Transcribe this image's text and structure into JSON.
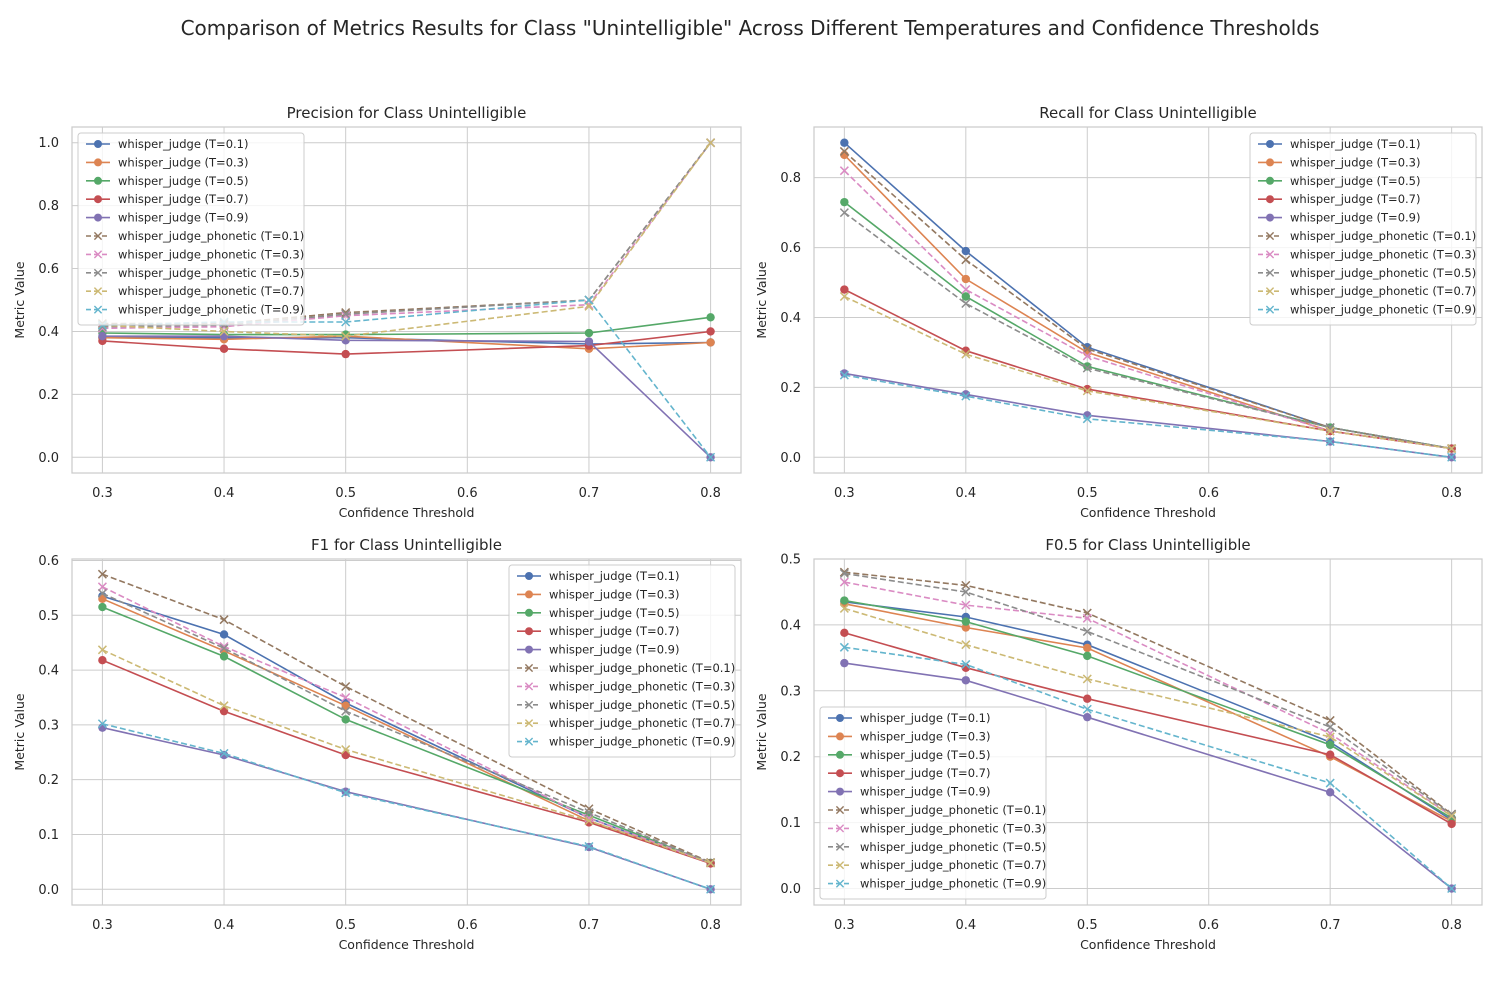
{
  "suptitle": "Comparison of Metrics Results for Class \"Unintelligible\" Across Different Temperatures and Confidence Thresholds",
  "colors": {
    "whisper_judge (T=0.1)": "#4c72b0",
    "whisper_judge (T=0.3)": "#dd8452",
    "whisper_judge (T=0.5)": "#55a868",
    "whisper_judge (T=0.7)": "#c44e52",
    "whisper_judge (T=0.9)": "#8172b3",
    "whisper_judge_phonetic (T=0.1)": "#937860",
    "whisper_judge_phonetic (T=0.3)": "#da8bc3",
    "whisper_judge_phonetic (T=0.5)": "#8c8c8c",
    "whisper_judge_phonetic (T=0.7)": "#ccb974",
    "whisper_judge_phonetic (T=0.9)": "#64b5cd"
  },
  "chart_data": [
    {
      "type": "line",
      "title": "Precision for Class Unintelligible",
      "xlabel": "Confidence Threshold",
      "ylabel": "Metric Value",
      "x": [
        0.3,
        0.4,
        0.5,
        0.7,
        0.8
      ],
      "xticks": [
        "0.3",
        "0.4",
        "0.5",
        "0.6",
        "0.7",
        "0.8"
      ],
      "yticks": [
        "0.0",
        "0.2",
        "0.4",
        "0.6",
        "0.8",
        "1.0"
      ],
      "ylim": [
        -0.05,
        1.05
      ],
      "legend_position": "upper left",
      "grid": true,
      "series": [
        {
          "name": "whisper_judge (T=0.1)",
          "marker": "o",
          "dashed": false,
          "values": [
            0.38,
            0.38,
            0.38,
            0.36,
            0.365
          ]
        },
        {
          "name": "whisper_judge (T=0.3)",
          "marker": "o",
          "dashed": false,
          "values": [
            0.38,
            0.375,
            0.385,
            0.345,
            0.365
          ]
        },
        {
          "name": "whisper_judge (T=0.5)",
          "marker": "o",
          "dashed": false,
          "values": [
            0.395,
            0.39,
            0.39,
            0.395,
            0.445
          ]
        },
        {
          "name": "whisper_judge (T=0.7)",
          "marker": "o",
          "dashed": false,
          "values": [
            0.37,
            0.345,
            0.328,
            0.355,
            0.4
          ]
        },
        {
          "name": "whisper_judge (T=0.9)",
          "marker": "o",
          "dashed": false,
          "values": [
            0.385,
            0.385,
            0.372,
            0.368,
            0.0
          ]
        },
        {
          "name": "whisper_judge_phonetic (T=0.1)",
          "marker": "x",
          "dashed": true,
          "values": [
            0.425,
            0.425,
            0.46,
            0.5,
            1.0
          ]
        },
        {
          "name": "whisper_judge_phonetic (T=0.3)",
          "marker": "x",
          "dashed": true,
          "values": [
            0.41,
            0.415,
            0.45,
            0.485,
            1.0
          ]
        },
        {
          "name": "whisper_judge_phonetic (T=0.5)",
          "marker": "x",
          "dashed": true,
          "values": [
            0.415,
            0.42,
            0.455,
            0.5,
            1.0
          ]
        },
        {
          "name": "whisper_judge_phonetic (T=0.7)",
          "marker": "x",
          "dashed": true,
          "values": [
            0.42,
            0.4,
            0.385,
            0.48,
            1.0
          ]
        },
        {
          "name": "whisper_judge_phonetic (T=0.9)",
          "marker": "x",
          "dashed": true,
          "values": [
            0.42,
            0.43,
            0.43,
            0.5,
            0.0
          ]
        }
      ]
    },
    {
      "type": "line",
      "title": "Recall for Class Unintelligible",
      "xlabel": "Confidence Threshold",
      "ylabel": "Metric Value",
      "x": [
        0.3,
        0.4,
        0.5,
        0.7,
        0.8
      ],
      "xticks": [
        "0.3",
        "0.4",
        "0.5",
        "0.6",
        "0.7",
        "0.8"
      ],
      "yticks": [
        "0.0",
        "0.2",
        "0.4",
        "0.6",
        "0.8"
      ],
      "ylim": [
        -0.045,
        0.945
      ],
      "legend_position": "upper right",
      "grid": true,
      "series": [
        {
          "name": "whisper_judge (T=0.1)",
          "marker": "o",
          "dashed": false,
          "values": [
            0.9,
            0.59,
            0.315,
            0.085,
            0.025
          ]
        },
        {
          "name": "whisper_judge (T=0.3)",
          "marker": "o",
          "dashed": false,
          "values": [
            0.865,
            0.51,
            0.3,
            0.075,
            0.025
          ]
        },
        {
          "name": "whisper_judge (T=0.5)",
          "marker": "o",
          "dashed": false,
          "values": [
            0.73,
            0.46,
            0.26,
            0.085,
            0.025
          ]
        },
        {
          "name": "whisper_judge (T=0.7)",
          "marker": "o",
          "dashed": false,
          "values": [
            0.48,
            0.305,
            0.195,
            0.075,
            0.025
          ]
        },
        {
          "name": "whisper_judge (T=0.9)",
          "marker": "o",
          "dashed": false,
          "values": [
            0.24,
            0.18,
            0.12,
            0.045,
            0.0
          ]
        },
        {
          "name": "whisper_judge_phonetic (T=0.1)",
          "marker": "x",
          "dashed": true,
          "values": [
            0.875,
            0.565,
            0.31,
            0.085,
            0.025
          ]
        },
        {
          "name": "whisper_judge_phonetic (T=0.3)",
          "marker": "x",
          "dashed": true,
          "values": [
            0.82,
            0.48,
            0.29,
            0.075,
            0.025
          ]
        },
        {
          "name": "whisper_judge_phonetic (T=0.5)",
          "marker": "x",
          "dashed": true,
          "values": [
            0.7,
            0.44,
            0.255,
            0.085,
            0.025
          ]
        },
        {
          "name": "whisper_judge_phonetic (T=0.7)",
          "marker": "x",
          "dashed": true,
          "values": [
            0.46,
            0.295,
            0.19,
            0.075,
            0.025
          ]
        },
        {
          "name": "whisper_judge_phonetic (T=0.9)",
          "marker": "x",
          "dashed": true,
          "values": [
            0.235,
            0.175,
            0.11,
            0.045,
            0.0
          ]
        }
      ]
    },
    {
      "type": "line",
      "title": "F1 for Class Unintelligible",
      "xlabel": "Confidence Threshold",
      "ylabel": "Metric Value",
      "x": [
        0.3,
        0.4,
        0.5,
        0.7,
        0.8
      ],
      "xticks": [
        "0.3",
        "0.4",
        "0.5",
        "0.6",
        "0.7",
        "0.8"
      ],
      "yticks": [
        "0.0",
        "0.1",
        "0.2",
        "0.3",
        "0.4",
        "0.5",
        "0.6"
      ],
      "ylim": [
        -0.0287,
        0.6027
      ],
      "legend_position": "upper right",
      "grid": true,
      "series": [
        {
          "name": "whisper_judge (T=0.1)",
          "marker": "o",
          "dashed": false,
          "values": [
            0.535,
            0.465,
            0.34,
            0.13,
            0.048
          ]
        },
        {
          "name": "whisper_judge (T=0.3)",
          "marker": "o",
          "dashed": false,
          "values": [
            0.53,
            0.435,
            0.335,
            0.125,
            0.048
          ]
        },
        {
          "name": "whisper_judge (T=0.5)",
          "marker": "o",
          "dashed": false,
          "values": [
            0.515,
            0.425,
            0.31,
            0.135,
            0.048
          ]
        },
        {
          "name": "whisper_judge (T=0.7)",
          "marker": "o",
          "dashed": false,
          "values": [
            0.418,
            0.325,
            0.245,
            0.122,
            0.047
          ]
        },
        {
          "name": "whisper_judge (T=0.9)",
          "marker": "o",
          "dashed": false,
          "values": [
            0.295,
            0.245,
            0.178,
            0.077,
            0.0
          ]
        },
        {
          "name": "whisper_judge_phonetic (T=0.1)",
          "marker": "x",
          "dashed": true,
          "values": [
            0.575,
            0.492,
            0.37,
            0.147,
            0.049
          ]
        },
        {
          "name": "whisper_judge_phonetic (T=0.3)",
          "marker": "x",
          "dashed": true,
          "values": [
            0.552,
            0.443,
            0.35,
            0.13,
            0.048
          ]
        },
        {
          "name": "whisper_judge_phonetic (T=0.5)",
          "marker": "x",
          "dashed": true,
          "values": [
            0.54,
            0.44,
            0.325,
            0.14,
            0.048
          ]
        },
        {
          "name": "whisper_judge_phonetic (T=0.7)",
          "marker": "x",
          "dashed": true,
          "values": [
            0.437,
            0.335,
            0.255,
            0.125,
            0.048
          ]
        },
        {
          "name": "whisper_judge_phonetic (T=0.9)",
          "marker": "x",
          "dashed": true,
          "values": [
            0.302,
            0.248,
            0.176,
            0.078,
            0.0
          ]
        }
      ]
    },
    {
      "type": "line",
      "title": "F0.5 for Class Unintelligible",
      "xlabel": "Confidence Threshold",
      "ylabel": "Metric Value",
      "x": [
        0.3,
        0.4,
        0.5,
        0.7,
        0.8
      ],
      "xticks": [
        "0.3",
        "0.4",
        "0.5",
        "0.6",
        "0.7",
        "0.8"
      ],
      "yticks": [
        "0.0",
        "0.1",
        "0.2",
        "0.3",
        "0.4",
        "0.5"
      ],
      "ylim": [
        -0.025,
        0.5
      ],
      "legend_position": "lower left",
      "grid": true,
      "series": [
        {
          "name": "whisper_judge (T=0.1)",
          "marker": "o",
          "dashed": false,
          "values": [
            0.435,
            0.412,
            0.37,
            0.222,
            0.104
          ]
        },
        {
          "name": "whisper_judge (T=0.3)",
          "marker": "o",
          "dashed": false,
          "values": [
            0.432,
            0.396,
            0.365,
            0.2,
            0.102
          ]
        },
        {
          "name": "whisper_judge (T=0.5)",
          "marker": "o",
          "dashed": false,
          "values": [
            0.437,
            0.405,
            0.353,
            0.218,
            0.107
          ]
        },
        {
          "name": "whisper_judge (T=0.7)",
          "marker": "o",
          "dashed": false,
          "values": [
            0.388,
            0.335,
            0.288,
            0.203,
            0.098
          ]
        },
        {
          "name": "whisper_judge (T=0.9)",
          "marker": "o",
          "dashed": false,
          "values": [
            0.342,
            0.316,
            0.26,
            0.146,
            0.0
          ]
        },
        {
          "name": "whisper_judge_phonetic (T=0.1)",
          "marker": "x",
          "dashed": true,
          "values": [
            0.48,
            0.46,
            0.418,
            0.255,
            0.113
          ]
        },
        {
          "name": "whisper_judge_phonetic (T=0.3)",
          "marker": "x",
          "dashed": true,
          "values": [
            0.465,
            0.43,
            0.41,
            0.235,
            0.11
          ]
        },
        {
          "name": "whisper_judge_phonetic (T=0.5)",
          "marker": "x",
          "dashed": true,
          "values": [
            0.478,
            0.45,
            0.39,
            0.245,
            0.112
          ]
        },
        {
          "name": "whisper_judge_phonetic (T=0.7)",
          "marker": "x",
          "dashed": true,
          "values": [
            0.425,
            0.37,
            0.318,
            0.23,
            0.11
          ]
        },
        {
          "name": "whisper_judge_phonetic (T=0.9)",
          "marker": "x",
          "dashed": true,
          "values": [
            0.366,
            0.34,
            0.272,
            0.16,
            0.0
          ]
        }
      ]
    }
  ]
}
